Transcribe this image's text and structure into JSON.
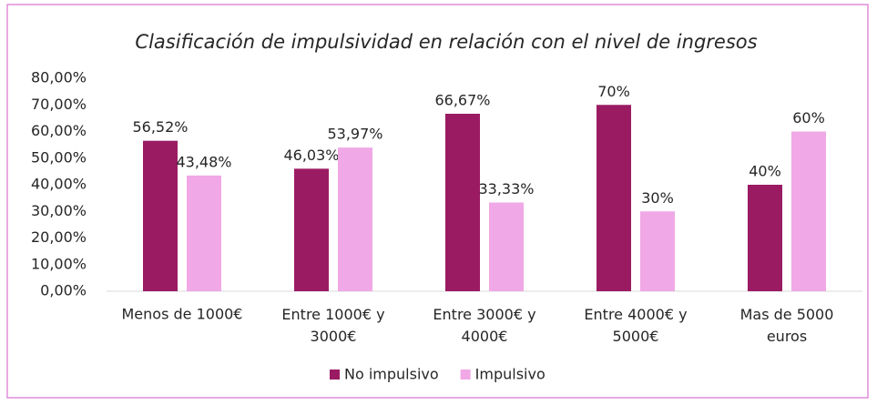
{
  "chart_data": {
    "type": "bar",
    "title": "Clasificación de impulsividad en relación con el nivel de ingresos",
    "categories": [
      "Menos de 1000€",
      "Entre 1000€ y 3000€",
      "Entre 3000€ y 4000€",
      "Entre 4000€ y 5000€",
      "Mas de 5000 euros"
    ],
    "series": [
      {
        "name": "No impulsivo",
        "color": "#9b1b63",
        "values": [
          56.52,
          46.03,
          66.67,
          70,
          40
        ],
        "value_labels": [
          "56,52%",
          "46,03%",
          "66,67%",
          "70%",
          "40%"
        ]
      },
      {
        "name": "Impulsivo",
        "color": "#f0a8e6",
        "values": [
          43.48,
          53.97,
          33.33,
          30,
          60
        ],
        "value_labels": [
          "43,48%",
          "53,97%",
          "33,33%",
          "30%",
          "60%"
        ]
      }
    ],
    "ylim": [
      0,
      80
    ],
    "yticks": [
      {
        "value": 0,
        "label": "0,00%"
      },
      {
        "value": 10,
        "label": "10,00%"
      },
      {
        "value": 20,
        "label": "20,00%"
      },
      {
        "value": 30,
        "label": "30,00%"
      },
      {
        "value": 40,
        "label": "40,00%"
      },
      {
        "value": 50,
        "label": "50,00%"
      },
      {
        "value": 60,
        "label": "60,00%"
      },
      {
        "value": 70,
        "label": "70,00%"
      },
      {
        "value": 80,
        "label": "80,00%"
      }
    ],
    "legend": "bottom"
  }
}
